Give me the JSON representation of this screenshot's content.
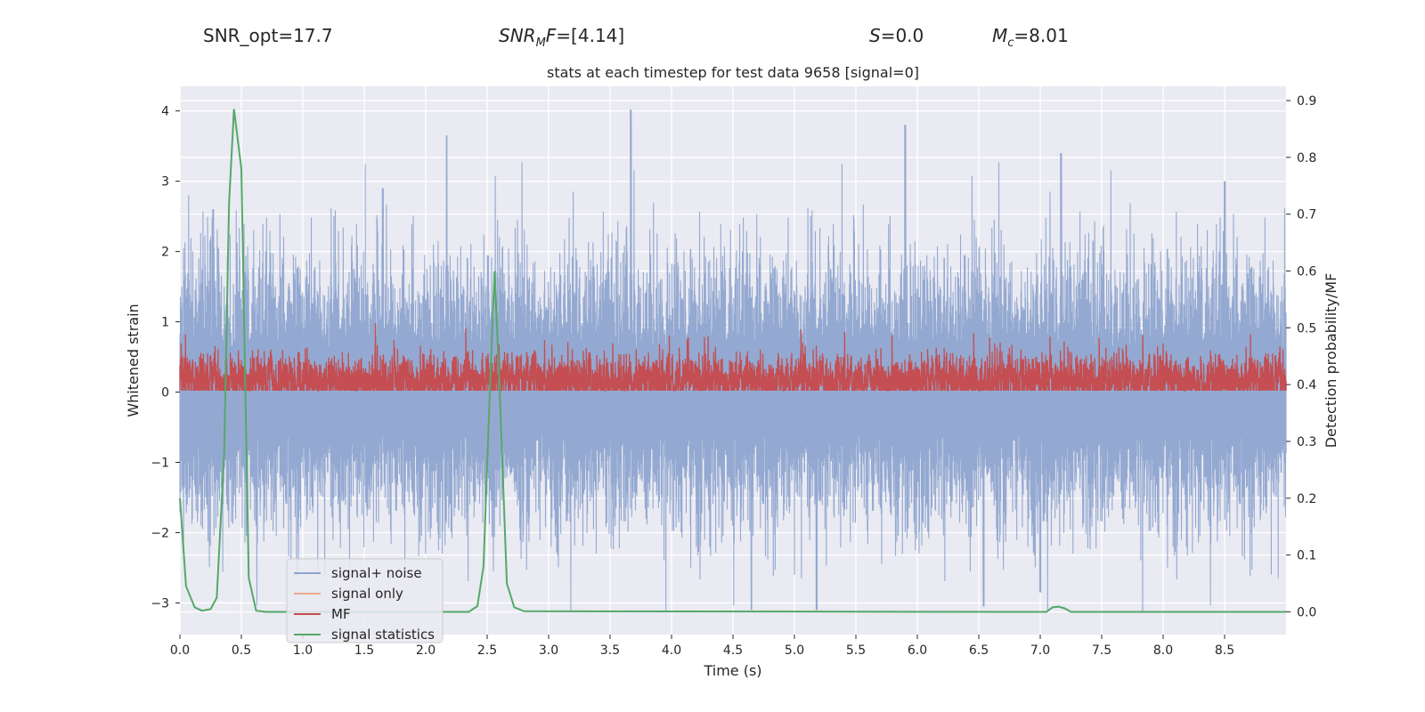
{
  "header": {
    "snr_opt": "SNR_opt=17.7",
    "snr_mf_sym": "SNR",
    "snr_mf_sub": "M",
    "snr_mf_sym2": "F",
    "snr_mf_value": "=[4.14]",
    "s_sym": "S",
    "s_value": "=0.0",
    "mc_sym": "M",
    "mc_sub": "c",
    "mc_value": "=8.01"
  },
  "chart_data": {
    "type": "line",
    "title": "stats at each timestep for test data 9658 [signal=0]",
    "xlabel": "Time (s)",
    "ylabel_left": "Whitened strain",
    "ylabel_right": "Detection probability/MF",
    "xlim": [
      0.0,
      9.0
    ],
    "ylim_left": [
      -3.45,
      4.35
    ],
    "ylim_right": [
      -0.04,
      0.925
    ],
    "x_ticks": [
      "0.0",
      "0.5",
      "1.0",
      "1.5",
      "2.0",
      "2.5",
      "3.0",
      "3.5",
      "4.0",
      "4.5",
      "5.0",
      "5.5",
      "6.0",
      "6.5",
      "7.0",
      "7.5",
      "8.0",
      "8.5"
    ],
    "y_ticks_left": [
      "−3",
      "−2",
      "−1",
      "0",
      "1",
      "2",
      "3",
      "4"
    ],
    "y_ticks_right": [
      "0.0",
      "0.1",
      "0.2",
      "0.3",
      "0.4",
      "0.5",
      "0.6",
      "0.7",
      "0.8",
      "0.9"
    ],
    "legend": [
      "signal+ noise",
      "signal only",
      "MF",
      "signal statistics"
    ],
    "legend_position": "lower-left",
    "colors": {
      "noise": "#8fa5cf",
      "signal_only": "#e8a88a",
      "mf": "#c44e52",
      "stats": "#55a868",
      "background": "#eaeaf2",
      "grid": "#ffffff"
    },
    "series": [
      {
        "name": "signal statistics",
        "axis": "right",
        "x": [
          0.0,
          0.05,
          0.12,
          0.18,
          0.25,
          0.3,
          0.36,
          0.4,
          0.44,
          0.5,
          0.56,
          0.62,
          0.7,
          2.35,
          2.42,
          2.47,
          2.52,
          2.56,
          2.6,
          2.66,
          2.72,
          2.8,
          7.0,
          7.05,
          7.1,
          7.15,
          7.2,
          7.25,
          9.0
        ],
        "values": [
          0.2,
          0.045,
          0.008,
          0.002,
          0.005,
          0.025,
          0.28,
          0.72,
          0.885,
          0.78,
          0.06,
          0.002,
          0.0,
          0.0,
          0.01,
          0.08,
          0.38,
          0.6,
          0.4,
          0.05,
          0.008,
          0.001,
          0.0,
          0.0,
          0.008,
          0.009,
          0.006,
          0.0,
          0.0
        ]
      },
      {
        "name": "signal+ noise",
        "axis": "left",
        "envelope": "dense noise, roughly between -3.1 and 4.0, typical band -1.6 to 1.8",
        "peaks": [
          [
            0.27,
            2.6
          ],
          [
            1.65,
            2.9
          ],
          [
            2.17,
            3.65
          ],
          [
            3.67,
            4.02
          ],
          [
            5.9,
            3.8
          ],
          [
            7.17,
            3.4
          ],
          [
            8.5,
            3.0
          ],
          [
            4.65,
            -3.1
          ],
          [
            5.18,
            -3.1
          ],
          [
            6.54,
            -3.05
          ],
          [
            7.0,
            -2.85
          ]
        ]
      },
      {
        "name": "MF",
        "axis": "left",
        "envelope": "dense trace, roughly between 0.0 and 1.0, typical band 0.1 to 0.65"
      },
      {
        "name": "signal only",
        "axis": "left",
        "envelope": "zero everywhere (no signal)"
      }
    ]
  }
}
